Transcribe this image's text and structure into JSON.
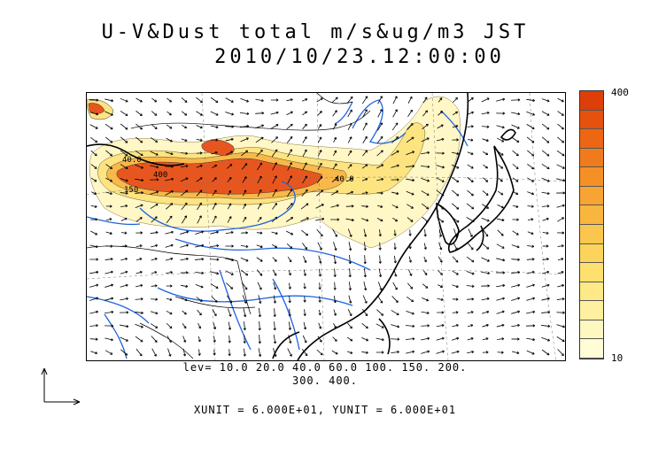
{
  "title": {
    "line1": "U-V&Dust total m/s&ug/m3 JST",
    "line2": "2010/10/23.12:00:00"
  },
  "colorbar": {
    "max_label": "400",
    "min_label": "10",
    "colors": [
      "#fffcd6",
      "#fef7c0",
      "#fef0a0",
      "#fde985",
      "#fde070",
      "#fcd45c",
      "#fbc64d",
      "#f9b63f",
      "#f7a432",
      "#f49026",
      "#f07b1c",
      "#ec6614",
      "#e6510d",
      "#de3f09"
    ]
  },
  "contour_labels": [
    "40.0",
    "40.0",
    "400",
    "150"
  ],
  "levels": {
    "line1": "lev= 10.0 20.0 40.0 60.0 100. 150. 200.",
    "line2": "300. 400."
  },
  "units": "XUNIT = 6.000E+01, YUNIT = 6.000E+01",
  "colors": {
    "rivers": "#1f63e0",
    "coast": "#000000",
    "dust_high": "#e8561f",
    "dust_mid": "#f9c25a",
    "dust_low": "#fff6c2"
  }
}
